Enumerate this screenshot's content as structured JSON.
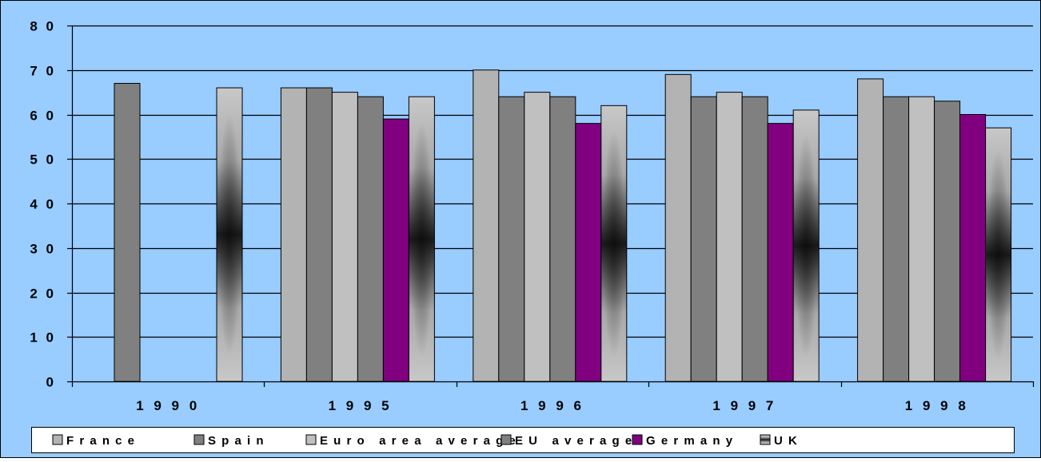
{
  "chart_data": {
    "type": "bar",
    "title": "",
    "xlabel": "",
    "ylabel": "",
    "ylim": [
      0,
      80
    ],
    "yticks": [
      0,
      10,
      20,
      30,
      40,
      50,
      60,
      70,
      80
    ],
    "ytick_labels": [
      "0",
      "1 0",
      "2 0",
      "3 0",
      "4 0",
      "5 0",
      "6 0",
      "7 0",
      "8 0"
    ],
    "categories": [
      "1990",
      "1995",
      "1996",
      "1997",
      "1998"
    ],
    "category_labels": [
      "1 9 9 0",
      "1 9 9 5",
      "1 9 9 6",
      "1 9 9 7",
      "1 9 9 8"
    ],
    "grid": true,
    "legend_position": "bottom",
    "plot_background": "#99CCFF",
    "series": [
      {
        "name": "France",
        "label": "F r a n c e",
        "color": "#B3B3B3",
        "style": "solid",
        "values": [
          null,
          66,
          70,
          69,
          68
        ]
      },
      {
        "name": "Spain",
        "label": "S p a i n",
        "color": "#808080",
        "style": "solid",
        "values": [
          67,
          66,
          64,
          64,
          64
        ]
      },
      {
        "name": "Euro area average",
        "label": "E u r o   a r e a   a v e r a g e",
        "color": "#C0C0C0",
        "style": "solid",
        "values": [
          null,
          65,
          65,
          65,
          64
        ]
      },
      {
        "name": "EU average",
        "label": "E U   a v e r a g e",
        "color": "#808080",
        "style": "solid",
        "values": [
          null,
          64,
          64,
          64,
          63
        ]
      },
      {
        "name": "Germany",
        "label": "G e r m a n y",
        "color": "#800080",
        "style": "solid",
        "values": [
          null,
          59,
          58,
          58,
          60
        ]
      },
      {
        "name": "UK",
        "label": "U K",
        "color": "#C0C0C0",
        "style": "gradient",
        "values": [
          66,
          64,
          62,
          61,
          57
        ]
      }
    ]
  }
}
